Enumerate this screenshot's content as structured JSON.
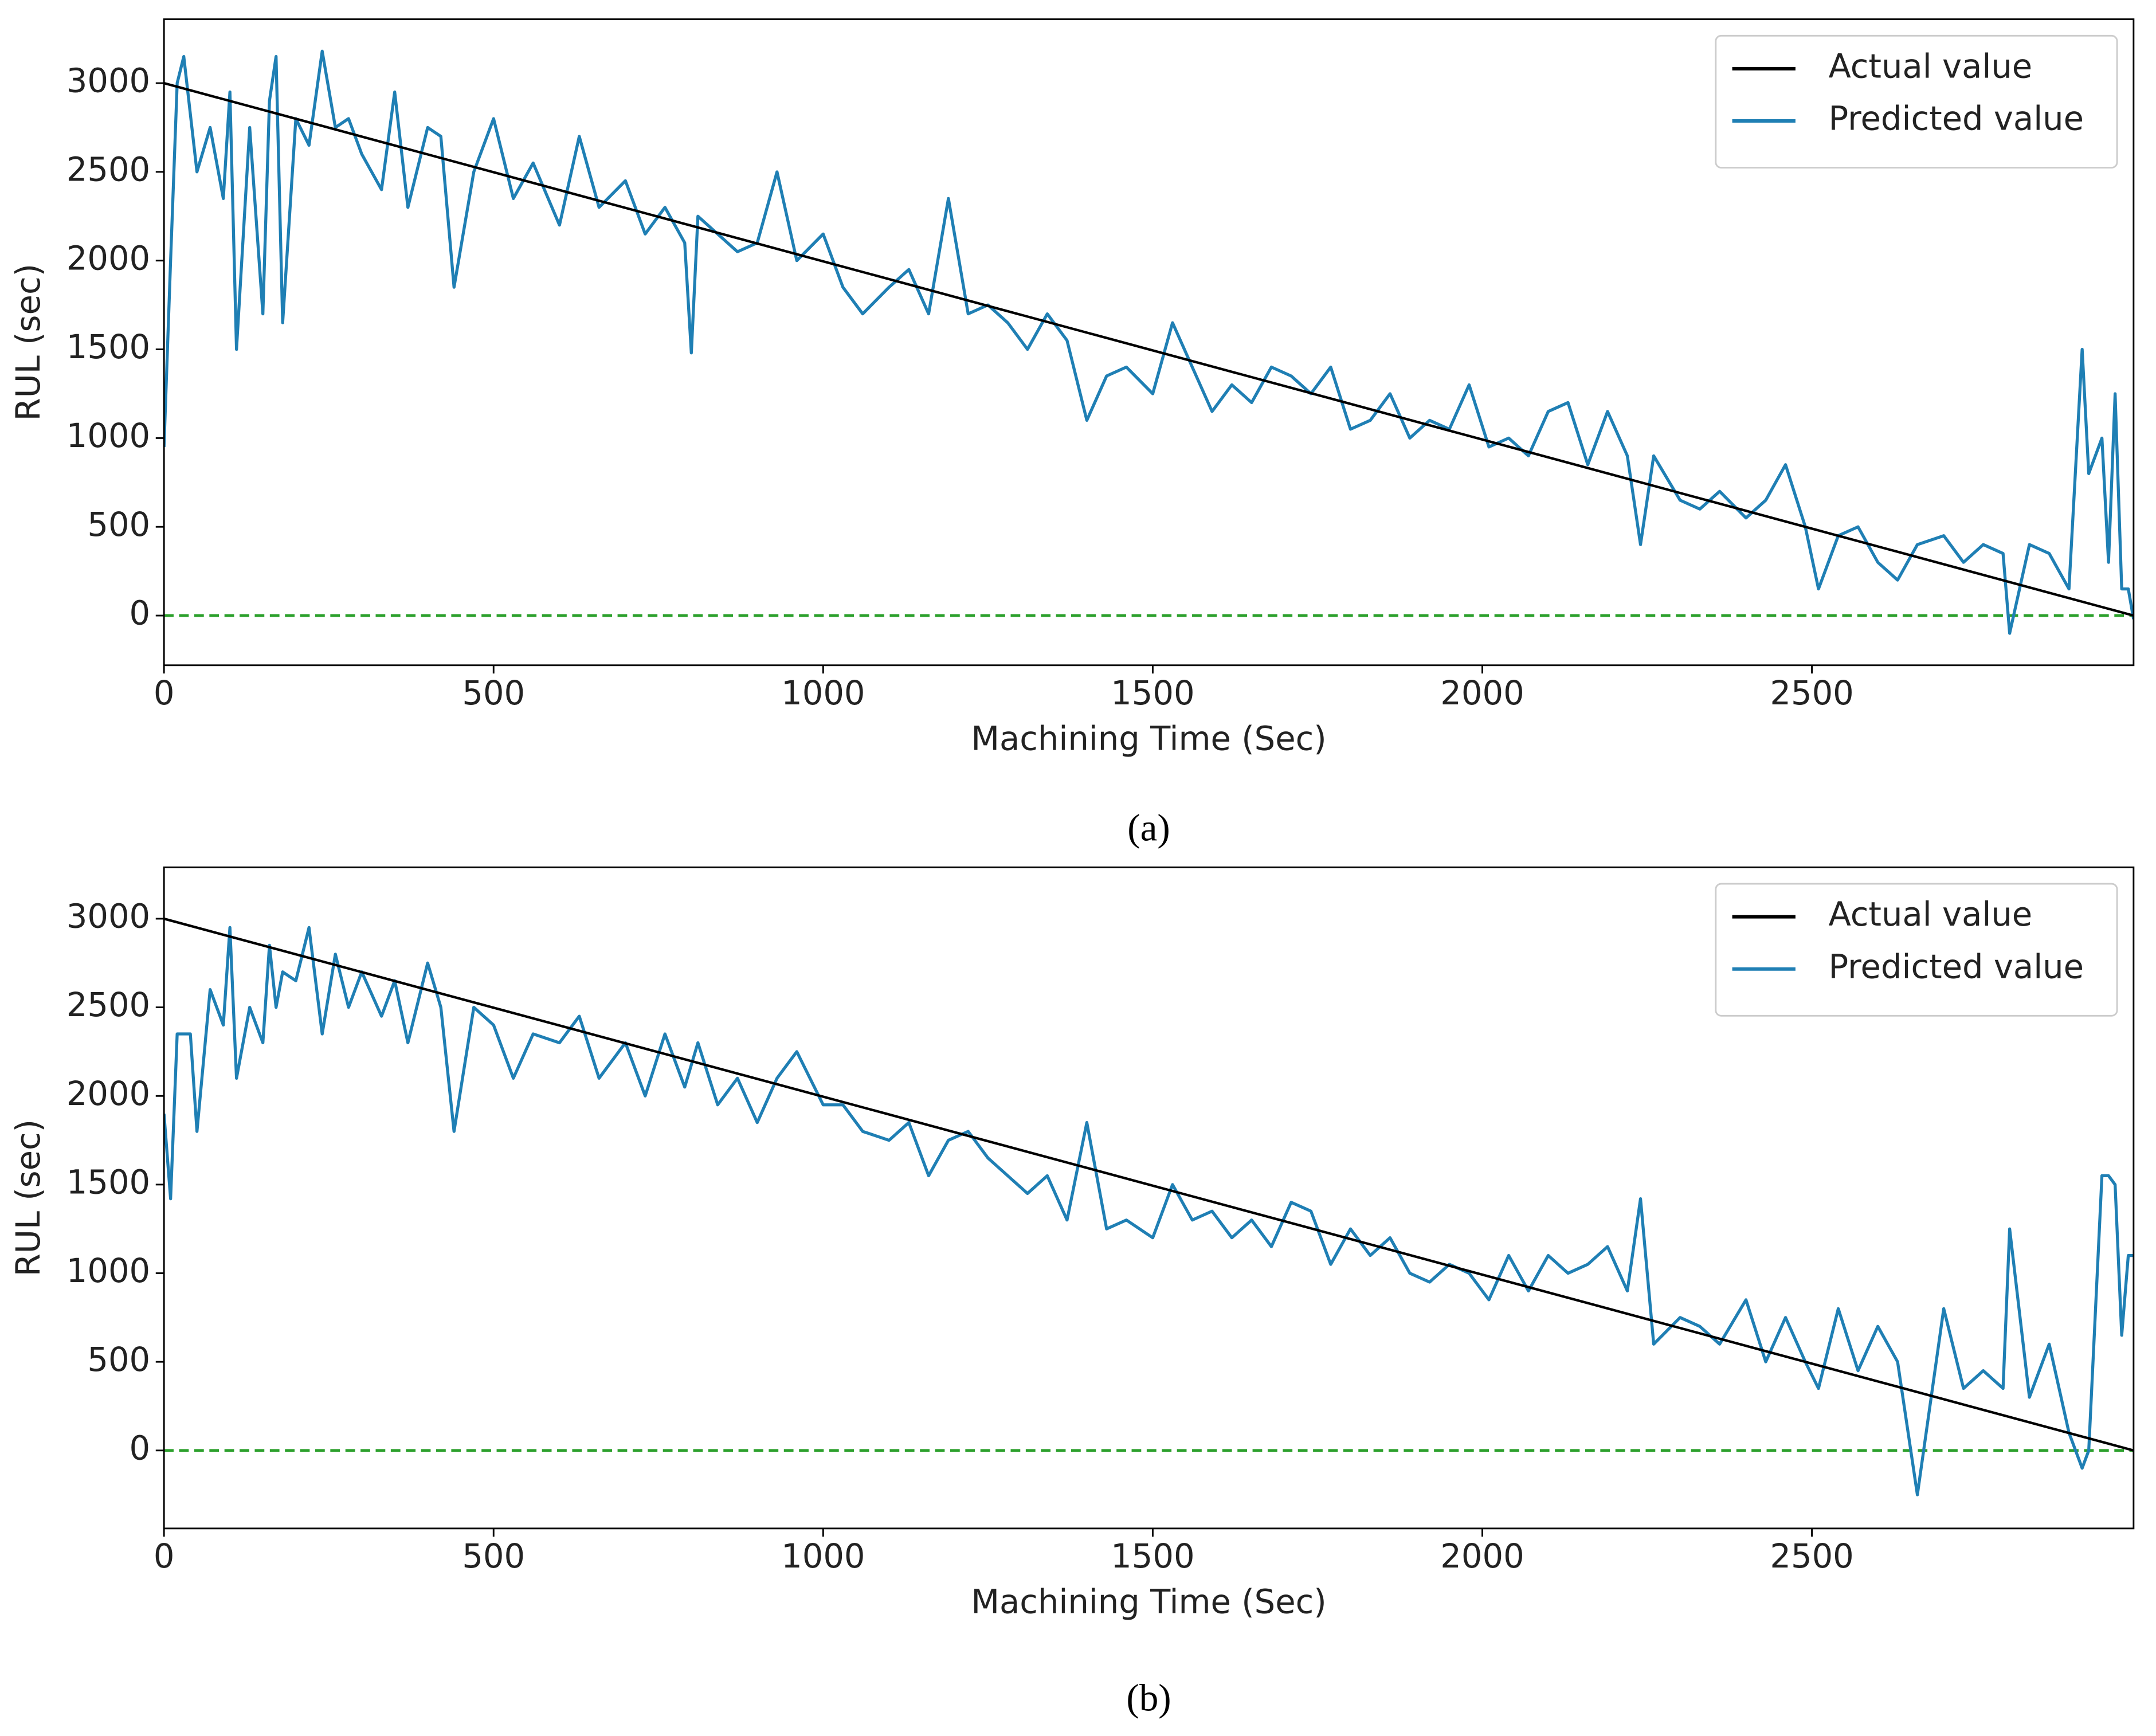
{
  "chart_data": [
    {
      "type": "line",
      "caption": "(a)",
      "x_label": "Machining Time (Sec)",
      "y_label": "RUL (sec)",
      "xlim": [
        0,
        2988
      ],
      "ylim": [
        -280,
        3360
      ],
      "xticks": [
        0,
        500,
        1000,
        1500,
        2000,
        2500
      ],
      "yticks": [
        0,
        500,
        1000,
        1500,
        2000,
        2500,
        3000
      ],
      "legend": "upper right",
      "reference_line": {
        "y": 0,
        "color": "#2ca02c",
        "style": "dashed"
      },
      "series": [
        {
          "name": "Actual value",
          "color": "#000000",
          "x": [
            0,
            2988
          ],
          "values": [
            3000,
            0
          ]
        },
        {
          "name": "Predicted value",
          "color": "#1f7fb4",
          "x": [
            0,
            10,
            20,
            30,
            50,
            70,
            90,
            100,
            110,
            130,
            150,
            160,
            170,
            180,
            200,
            220,
            240,
            260,
            280,
            300,
            330,
            350,
            370,
            400,
            420,
            440,
            470,
            500,
            530,
            560,
            600,
            630,
            660,
            700,
            730,
            760,
            790,
            800,
            810,
            840,
            870,
            900,
            930,
            960,
            1000,
            1030,
            1060,
            1100,
            1130,
            1160,
            1190,
            1220,
            1250,
            1280,
            1310,
            1340,
            1370,
            1400,
            1430,
            1460,
            1500,
            1530,
            1560,
            1590,
            1620,
            1650,
            1680,
            1710,
            1740,
            1770,
            1800,
            1830,
            1860,
            1890,
            1920,
            1950,
            1980,
            2010,
            2040,
            2070,
            2100,
            2130,
            2160,
            2190,
            2220,
            2240,
            2260,
            2300,
            2330,
            2360,
            2400,
            2430,
            2460,
            2490,
            2510,
            2540,
            2570,
            2600,
            2630,
            2660,
            2700,
            2730,
            2760,
            2790,
            2800,
            2830,
            2860,
            2890,
            2910,
            2920,
            2940,
            2950,
            2960,
            2970,
            2980,
            2988
          ],
          "values": [
            950,
            2000,
            3000,
            3150,
            2500,
            2750,
            2350,
            2950,
            1500,
            2750,
            1700,
            2900,
            3150,
            1650,
            2800,
            2650,
            3180,
            2750,
            2800,
            2600,
            2400,
            2950,
            2300,
            2750,
            2700,
            1850,
            2500,
            2800,
            2350,
            2550,
            2200,
            2700,
            2300,
            2450,
            2150,
            2300,
            2100,
            1480,
            2250,
            2150,
            2050,
            2100,
            2500,
            2000,
            2150,
            1850,
            1700,
            1850,
            1950,
            1700,
            2350,
            1700,
            1750,
            1650,
            1500,
            1700,
            1550,
            1100,
            1350,
            1400,
            1250,
            1650,
            1400,
            1150,
            1300,
            1200,
            1400,
            1350,
            1250,
            1400,
            1050,
            1100,
            1250,
            1000,
            1100,
            1050,
            1300,
            950,
            1000,
            900,
            1150,
            1200,
            850,
            1150,
            900,
            400,
            900,
            650,
            600,
            700,
            550,
            650,
            850,
            500,
            150,
            450,
            500,
            300,
            200,
            400,
            450,
            300,
            400,
            350,
            -100,
            400,
            350,
            150,
            1500,
            800,
            1000,
            300,
            1250,
            150,
            150,
            -20
          ]
        }
      ]
    },
    {
      "type": "line",
      "caption": "(b)",
      "x_label": "Machining Time (Sec)",
      "y_label": "RUL (sec)",
      "xlim": [
        0,
        2988
      ],
      "ylim": [
        -440,
        3290
      ],
      "xticks": [
        0,
        500,
        1000,
        1500,
        2000,
        2500
      ],
      "yticks": [
        0,
        500,
        1000,
        1500,
        2000,
        2500,
        3000
      ],
      "legend": "upper right",
      "reference_line": {
        "y": 0,
        "color": "#2ca02c",
        "style": "dashed"
      },
      "series": [
        {
          "name": "Actual value",
          "color": "#000000",
          "x": [
            0,
            2988
          ],
          "values": [
            3000,
            0
          ]
        },
        {
          "name": "Predicted value",
          "color": "#1f7fb4",
          "x": [
            0,
            10,
            20,
            40,
            50,
            70,
            90,
            100,
            110,
            130,
            150,
            160,
            170,
            180,
            200,
            220,
            240,
            260,
            280,
            300,
            330,
            350,
            370,
            400,
            420,
            440,
            470,
            500,
            530,
            560,
            600,
            630,
            660,
            700,
            730,
            760,
            790,
            810,
            840,
            870,
            900,
            930,
            960,
            1000,
            1030,
            1060,
            1100,
            1130,
            1160,
            1190,
            1220,
            1250,
            1280,
            1310,
            1340,
            1370,
            1400,
            1430,
            1460,
            1500,
            1530,
            1560,
            1590,
            1620,
            1650,
            1680,
            1710,
            1740,
            1770,
            1800,
            1830,
            1860,
            1890,
            1920,
            1950,
            1980,
            2010,
            2040,
            2070,
            2100,
            2130,
            2160,
            2190,
            2220,
            2240,
            2260,
            2300,
            2330,
            2360,
            2400,
            2430,
            2460,
            2490,
            2510,
            2540,
            2570,
            2600,
            2630,
            2660,
            2700,
            2730,
            2760,
            2790,
            2800,
            2830,
            2860,
            2890,
            2910,
            2920,
            2940,
            2950,
            2960,
            2970,
            2980,
            2988
          ],
          "values": [
            1900,
            1420,
            2350,
            2350,
            1800,
            2600,
            2400,
            2950,
            2100,
            2500,
            2300,
            2850,
            2500,
            2700,
            2650,
            2950,
            2350,
            2800,
            2500,
            2700,
            2450,
            2650,
            2300,
            2750,
            2500,
            1800,
            2500,
            2400,
            2100,
            2350,
            2300,
            2450,
            2100,
            2300,
            2000,
            2350,
            2050,
            2300,
            1950,
            2100,
            1850,
            2100,
            2250,
            1950,
            1950,
            1800,
            1750,
            1850,
            1550,
            1750,
            1800,
            1650,
            1550,
            1450,
            1550,
            1300,
            1850,
            1250,
            1300,
            1200,
            1500,
            1300,
            1350,
            1200,
            1300,
            1150,
            1400,
            1350,
            1050,
            1250,
            1100,
            1200,
            1000,
            950,
            1050,
            1000,
            850,
            1100,
            900,
            1100,
            1000,
            1050,
            1150,
            900,
            1420,
            600,
            750,
            700,
            600,
            850,
            500,
            750,
            500,
            350,
            800,
            450,
            700,
            500,
            -250,
            800,
            350,
            450,
            350,
            1250,
            300,
            600,
            100,
            -100,
            0,
            1550,
            1550,
            1500,
            650,
            1100,
            1100
          ]
        }
      ]
    }
  ]
}
